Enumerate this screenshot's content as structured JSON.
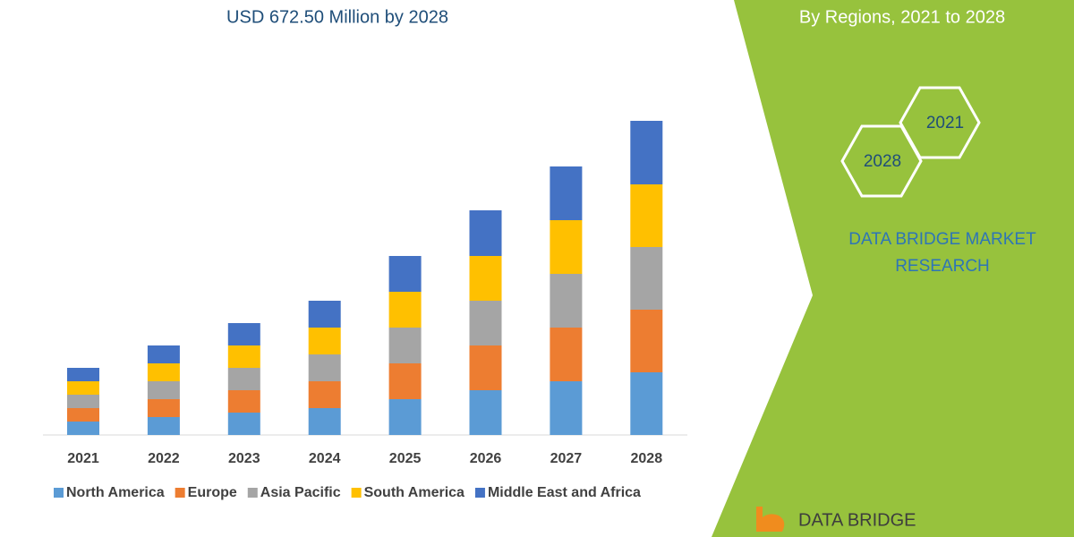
{
  "chart_data": {
    "type": "stacked_bar",
    "title": "USD 672.50 Million by 2028",
    "categories": [
      "2021",
      "2022",
      "2023",
      "2024",
      "2025",
      "2026",
      "2027",
      "2028"
    ],
    "series": [
      {
        "name": "North America",
        "color": "#5b9bd5",
        "values": [
          15,
          20,
          25,
          30,
          40,
          50,
          60,
          70
        ]
      },
      {
        "name": "Europe",
        "color": "#ed7d31",
        "values": [
          15,
          20,
          25,
          30,
          40,
          50,
          60,
          70
        ]
      },
      {
        "name": "Asia Pacific",
        "color": "#a5a5a5",
        "values": [
          15,
          20,
          25,
          30,
          40,
          50,
          60,
          70
        ]
      },
      {
        "name": "South America",
        "color": "#ffc000",
        "values": [
          15,
          20,
          25,
          30,
          40,
          50,
          60,
          70
        ]
      },
      {
        "name": "Middle East and Africa",
        "color": "#4472c4",
        "values": [
          15,
          20,
          25,
          30,
          40,
          51,
          60,
          71
        ]
      }
    ]
  },
  "side_panel": {
    "subtitle": "By Regions, 2021 to 2028",
    "hexagons": [
      "2021",
      "2028"
    ],
    "brand": [
      "DATA BRIDGE MARKET",
      "RESEARCH"
    ],
    "logo": "DATA BRIDGE"
  }
}
